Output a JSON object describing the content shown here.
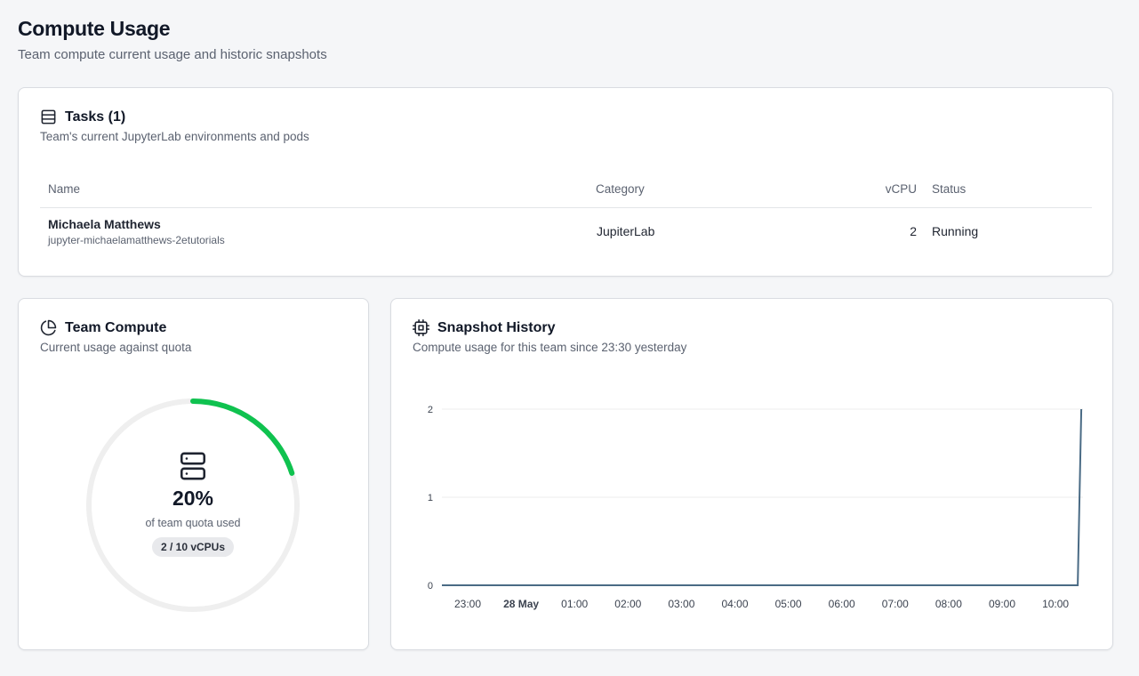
{
  "page": {
    "title": "Compute Usage",
    "subtitle": "Team compute current usage and historic snapshots"
  },
  "tasks": {
    "title": "Tasks (1)",
    "description": "Team's current JupyterLab environments and pods",
    "icon": "table-icon",
    "columns": {
      "name": "Name",
      "category": "Category",
      "vcpu": "vCPU",
      "status": "Status"
    },
    "rows": [
      {
        "name": "Michaela Matthews",
        "pod": "jupyter-michaelamatthews-2etutorials",
        "category": "JupiterLab",
        "vcpu": "2",
        "status": "Running"
      }
    ]
  },
  "team_compute": {
    "title": "Team Compute",
    "description": "Current usage against quota",
    "icon": "pie-chart-icon",
    "center_icon": "server-icon",
    "percent_text": "20%",
    "percent_value": 0.2,
    "quota_text": "of team quota used",
    "badge": "2 / 10 vCPUs",
    "colors": {
      "progress": "#0fc24f",
      "track": "#efefef"
    }
  },
  "snapshot": {
    "title": "Snapshot History",
    "description": "Compute usage for this team since 23:30 yesterday",
    "icon": "cpu-icon",
    "colors": {
      "line": "#4a6b85",
      "grid": "#ececec"
    }
  },
  "chart_data": {
    "type": "line",
    "title": "",
    "xlabel": "",
    "ylabel": "",
    "ylim": [
      0,
      2
    ],
    "y_ticks": [
      "0",
      "1",
      "2"
    ],
    "x_ticks": [
      "23:00",
      "28 May",
      "01:00",
      "02:00",
      "03:00",
      "04:00",
      "05:00",
      "06:00",
      "07:00",
      "08:00",
      "09:00",
      "10:00"
    ],
    "x_tick_bold": [
      false,
      true,
      false,
      false,
      false,
      false,
      false,
      false,
      false,
      false,
      false,
      false
    ],
    "grid": true,
    "series": [
      {
        "x": [
          "22:50",
          "10:25",
          "10:29"
        ],
        "values": [
          0,
          0,
          2
        ]
      }
    ]
  }
}
